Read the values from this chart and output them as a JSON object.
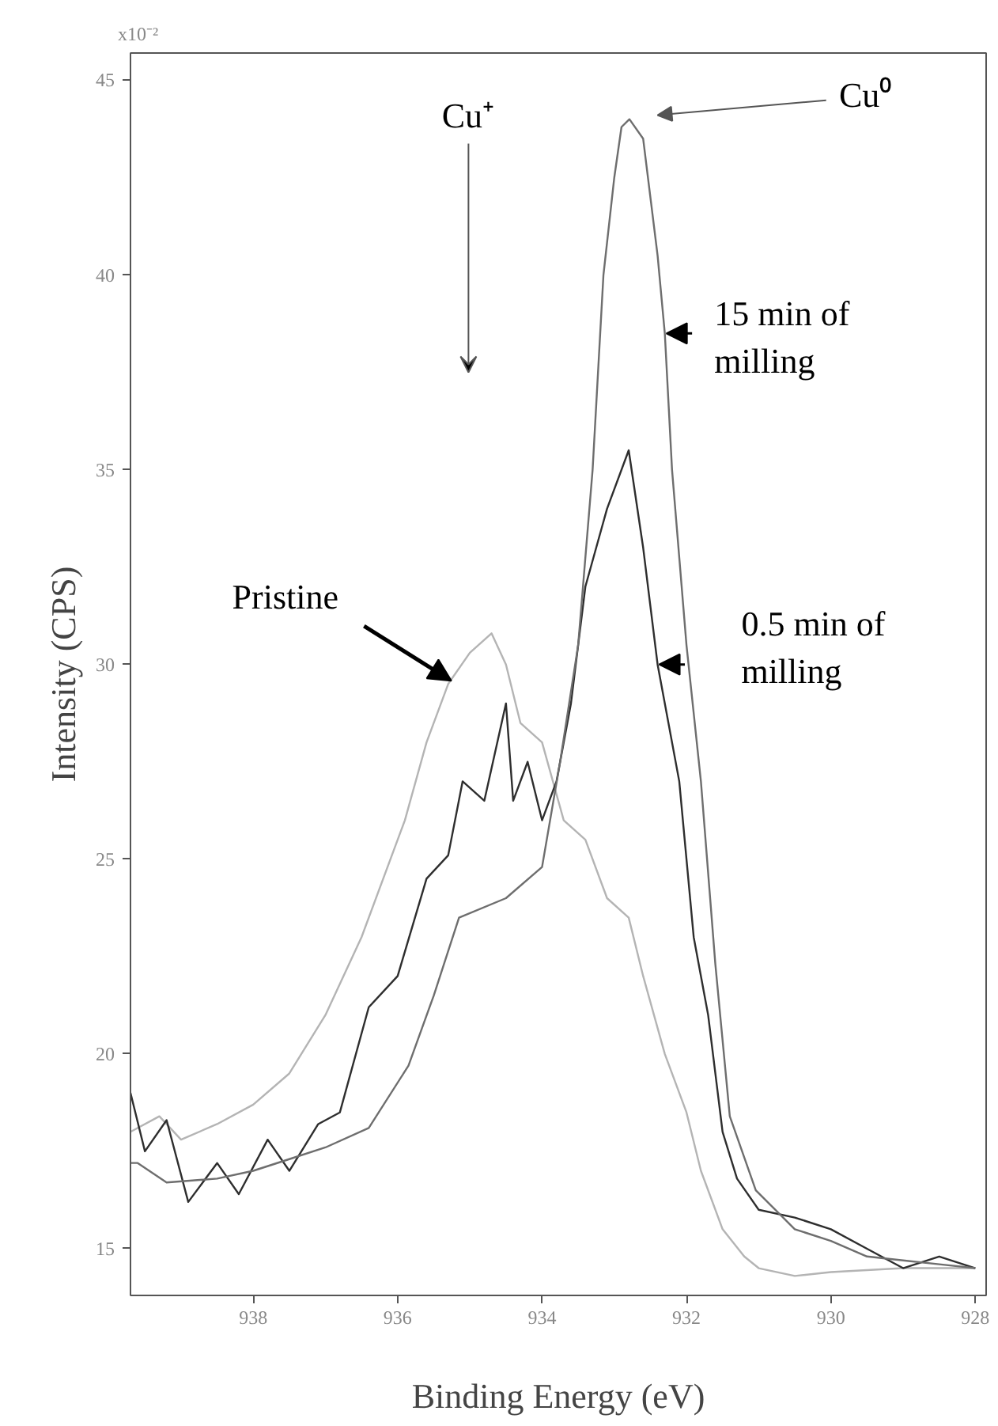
{
  "chart_data": {
    "type": "line",
    "xlabel": "Binding Energy (eV)",
    "ylabel": "Intensity (CPS)",
    "xlim": [
      939.7,
      927.85
    ],
    "ylim": [
      13.8,
      45.7
    ],
    "xticks": [
      938,
      936,
      934,
      932,
      930,
      928
    ],
    "yticks": [
      15,
      20,
      25,
      30,
      35,
      40,
      45
    ],
    "grid": false,
    "series": [
      {
        "color": "#b4b4b4",
        "x": [
          939.7,
          939.3,
          939.0,
          938.5,
          938.0,
          937.5,
          937.0,
          936.5,
          936.2,
          935.9,
          935.6,
          935.3,
          935.0,
          934.7,
          934.5,
          934.3,
          934.0,
          933.7,
          933.4,
          933.1,
          932.8,
          932.6,
          932.3,
          932.0,
          931.8,
          931.5,
          931.2,
          931.0,
          930.5,
          930.0,
          929.0,
          928.0
        ],
        "values": [
          18.0,
          18.4,
          17.8,
          18.2,
          18.7,
          19.5,
          21.0,
          23.0,
          24.5,
          26.0,
          28.0,
          29.5,
          30.3,
          30.8,
          30.0,
          28.5,
          28.0,
          26.0,
          25.5,
          24.0,
          23.5,
          22.0,
          20.0,
          18.5,
          17.0,
          15.5,
          14.8,
          14.5,
          14.3,
          14.4,
          14.5,
          14.5
        ]
      },
      {
        "color": "#2e2e2e",
        "x": [
          939.7,
          939.5,
          939.2,
          938.9,
          938.5,
          938.2,
          937.8,
          937.5,
          937.1,
          936.8,
          936.4,
          936.0,
          935.6,
          935.3,
          935.1,
          934.8,
          934.5,
          934.4,
          934.2,
          934.0,
          933.8,
          933.6,
          933.4,
          933.1,
          932.8,
          932.6,
          932.4,
          932.1,
          931.9,
          931.7,
          931.5,
          931.3,
          931.0,
          930.5,
          930.0,
          929.5,
          929.0,
          928.5,
          928.0
        ],
        "values": [
          19.0,
          17.5,
          18.3,
          16.2,
          17.2,
          16.4,
          17.8,
          17.0,
          18.2,
          18.5,
          21.2,
          22.0,
          24.5,
          25.1,
          27.0,
          26.5,
          29.0,
          26.5,
          27.5,
          26.0,
          27.0,
          29.0,
          32.0,
          34.0,
          35.5,
          33.0,
          30.0,
          27.0,
          23.0,
          21.0,
          18.0,
          16.8,
          16.0,
          15.8,
          15.5,
          15.0,
          14.5,
          14.8,
          14.5
        ]
      },
      {
        "color": "#6e6e6e",
        "x": [
          939.7,
          939.6,
          939.2,
          938.5,
          938.0,
          937.5,
          937.0,
          936.4,
          935.85,
          935.5,
          935.15,
          934.5,
          934.0,
          933.75,
          933.5,
          933.3,
          933.15,
          933.0,
          932.9,
          932.79,
          932.6,
          932.4,
          932.3,
          932.2,
          932.0,
          931.8,
          931.6,
          931.4,
          931.04,
          930.5,
          930.0,
          929.5,
          929.0,
          928.5,
          928.0
        ],
        "values": [
          17.2,
          17.2,
          16.7,
          16.8,
          17.0,
          17.3,
          17.6,
          18.1,
          19.7,
          21.5,
          23.5,
          24.0,
          24.8,
          27.5,
          30.5,
          35.0,
          40.0,
          42.5,
          43.8,
          44.0,
          43.5,
          40.5,
          38.5,
          35.0,
          30.5,
          27.0,
          22.3,
          18.4,
          16.5,
          15.5,
          15.2,
          14.8,
          14.7,
          14.6,
          14.5
        ]
      }
    ],
    "annotations": [
      "x10⁻²",
      "Cu⁺",
      "Cu⁰",
      {
        "text": "15 min of milling",
        "x": 932.3,
        "y": 38.5
      },
      {
        "text": "0.5 min of milling",
        "x": 932.4,
        "y": 30.0
      },
      {
        "text": "Pristine",
        "x": 935.3,
        "y": 29.5
      }
    ]
  }
}
